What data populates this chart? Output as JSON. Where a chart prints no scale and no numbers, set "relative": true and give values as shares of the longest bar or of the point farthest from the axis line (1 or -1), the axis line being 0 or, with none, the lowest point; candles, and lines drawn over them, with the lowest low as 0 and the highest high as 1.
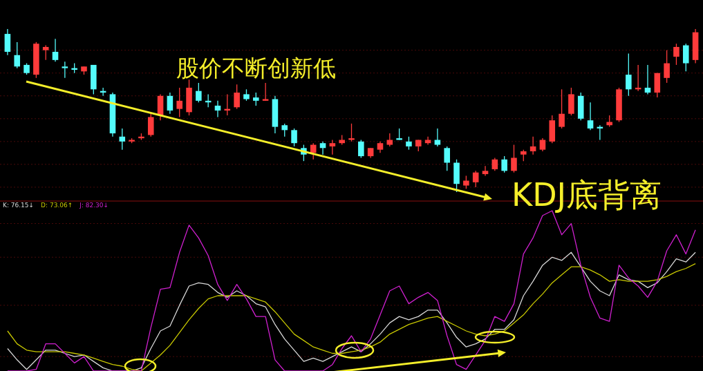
{
  "chart_data": [
    {
      "type": "candlestick",
      "relative": true,
      "ref_lines": [
        {
          "axis": "y",
          "value": 0.87,
          "color": "#4a0a0a",
          "line_style": "dashed"
        },
        {
          "axis": "y",
          "value": 0.73,
          "color": "#4a0a0a",
          "line_style": "dashed"
        },
        {
          "axis": "y",
          "value": 0.59,
          "color": "#4a0a0a",
          "line_style": "dashed"
        },
        {
          "axis": "y",
          "value": 0.45,
          "color": "#4a0a0a",
          "line_style": "dashed"
        },
        {
          "axis": "y",
          "value": 0.31,
          "color": "#4a0a0a",
          "line_style": "dashed"
        },
        {
          "axis": "y",
          "value": 0.17,
          "color": "#4a0a0a",
          "line_style": "dashed"
        },
        {
          "axis": "y",
          "value": 0.03,
          "color": "#4a0a0a",
          "line_style": "dashed"
        }
      ],
      "categories": [
        null,
        null,
        null,
        null,
        null,
        null,
        null,
        null,
        null,
        null,
        null,
        null,
        null,
        null,
        null,
        null,
        null,
        null,
        null,
        null,
        null,
        null,
        null,
        null,
        null,
        null,
        null,
        null,
        null,
        null,
        null,
        null,
        null,
        null,
        null,
        null,
        null,
        null,
        null,
        null,
        null,
        null,
        null,
        null,
        null,
        null,
        null,
        null,
        null,
        null,
        null,
        null,
        null,
        null,
        null,
        null,
        null,
        null,
        null,
        null,
        null,
        null,
        null,
        null,
        null,
        null,
        null,
        null,
        null,
        null,
        null,
        null,
        null
      ],
      "ohlc": [
        [
          0.97,
          1.0,
          0.84,
          0.86
        ],
        [
          0.84,
          0.92,
          0.76,
          0.77
        ],
        [
          0.78,
          0.79,
          0.72,
          0.73
        ],
        [
          0.72,
          0.92,
          0.7,
          0.91
        ],
        [
          0.87,
          0.9,
          0.81,
          0.89
        ],
        [
          0.86,
          0.94,
          0.8,
          0.81
        ],
        [
          0.77,
          0.8,
          0.7,
          0.76
        ],
        [
          0.76,
          0.79,
          0.73,
          0.75
        ],
        [
          0.74,
          0.77,
          0.72,
          0.77
        ],
        [
          0.78,
          0.78,
          0.6,
          0.63
        ],
        [
          0.62,
          0.64,
          0.59,
          0.61
        ],
        [
          0.6,
          0.61,
          0.34,
          0.36
        ],
        [
          0.34,
          0.39,
          0.26,
          0.31
        ],
        [
          0.31,
          0.33,
          0.3,
          0.32
        ],
        [
          0.33,
          0.36,
          0.32,
          0.34
        ],
        [
          0.35,
          0.48,
          0.34,
          0.46
        ],
        [
          0.47,
          0.6,
          0.44,
          0.59
        ],
        [
          0.59,
          0.61,
          0.48,
          0.5
        ],
        [
          0.51,
          0.64,
          0.46,
          0.56
        ],
        [
          0.49,
          0.69,
          0.47,
          0.64
        ],
        [
          0.62,
          0.67,
          0.55,
          0.56
        ],
        [
          0.56,
          0.6,
          0.52,
          0.55
        ],
        [
          0.53,
          0.56,
          0.46,
          0.5
        ],
        [
          0.5,
          0.6,
          0.47,
          0.51
        ],
        [
          0.52,
          0.66,
          0.51,
          0.61
        ],
        [
          0.6,
          0.63,
          0.56,
          0.57
        ],
        [
          0.58,
          0.61,
          0.53,
          0.56
        ],
        [
          0.56,
          0.67,
          0.56,
          0.57
        ],
        [
          0.57,
          0.59,
          0.36,
          0.4
        ],
        [
          0.41,
          0.42,
          0.34,
          0.38
        ],
        [
          0.38,
          0.39,
          0.28,
          0.3
        ],
        [
          0.27,
          0.29,
          0.19,
          0.23
        ],
        [
          0.24,
          0.3,
          0.2,
          0.29
        ],
        [
          0.3,
          0.31,
          0.23,
          0.27
        ],
        [
          0.28,
          0.32,
          0.23,
          0.3
        ],
        [
          0.3,
          0.35,
          0.29,
          0.32
        ],
        [
          0.32,
          0.42,
          0.31,
          0.33
        ],
        [
          0.31,
          0.32,
          0.21,
          0.22
        ],
        [
          0.22,
          0.27,
          0.21,
          0.27
        ],
        [
          0.26,
          0.31,
          0.24,
          0.3
        ],
        [
          0.29,
          0.36,
          0.28,
          0.32
        ],
        [
          0.33,
          0.39,
          0.32,
          0.32
        ],
        [
          0.31,
          0.34,
          0.26,
          0.28
        ],
        [
          0.28,
          0.32,
          0.25,
          0.32
        ],
        [
          0.3,
          0.34,
          0.29,
          0.32
        ],
        [
          0.32,
          0.39,
          0.28,
          0.29
        ],
        [
          0.27,
          0.28,
          0.13,
          0.18
        ],
        [
          0.18,
          0.2,
          0.0,
          0.05
        ],
        [
          0.04,
          0.1,
          0.02,
          0.07
        ],
        [
          0.06,
          0.13,
          0.03,
          0.12
        ],
        [
          0.11,
          0.16,
          0.1,
          0.13
        ],
        [
          0.14,
          0.21,
          0.13,
          0.2
        ],
        [
          0.2,
          0.22,
          0.12,
          0.13
        ],
        [
          0.13,
          0.29,
          0.12,
          0.21
        ],
        [
          0.23,
          0.26,
          0.19,
          0.25
        ],
        [
          0.25,
          0.34,
          0.23,
          0.28
        ],
        [
          0.26,
          0.33,
          0.25,
          0.32
        ],
        [
          0.31,
          0.47,
          0.3,
          0.44
        ],
        [
          0.4,
          0.63,
          0.39,
          0.48
        ],
        [
          0.48,
          0.64,
          0.47,
          0.6
        ],
        [
          0.59,
          0.61,
          0.44,
          0.45
        ],
        [
          0.44,
          0.55,
          0.38,
          0.39
        ],
        [
          0.4,
          0.41,
          0.32,
          0.39
        ],
        [
          0.41,
          0.47,
          0.4,
          0.43
        ],
        [
          0.44,
          0.64,
          0.43,
          0.63
        ],
        [
          0.72,
          0.85,
          0.59,
          0.63
        ],
        [
          0.63,
          0.78,
          0.62,
          0.64
        ],
        [
          0.64,
          0.78,
          0.6,
          0.61
        ],
        [
          0.61,
          0.73,
          0.58,
          0.73
        ],
        [
          0.7,
          0.87,
          0.67,
          0.79
        ],
        [
          0.83,
          0.91,
          0.78,
          0.89
        ],
        [
          0.9,
          0.91,
          0.74,
          0.79
        ],
        [
          0.81,
          1.0,
          0.79,
          0.98
        ]
      ],
      "colors": [
        "#54fcfc",
        "#54fcfc",
        "#54fcfc",
        "#ff3b3b",
        "#ff3b3b",
        "#54fcfc",
        "#54fcfc",
        "#54fcfc",
        "#ff3b3b",
        "#54fcfc",
        "#54fcfc",
        "#54fcfc",
        "#54fcfc",
        "#ff3b3b",
        "#ff3b3b",
        "#ff3b3b",
        "#ff3b3b",
        "#54fcfc",
        "#ff3b3b",
        "#ff3b3b",
        "#54fcfc",
        "#54fcfc",
        "#54fcfc",
        "#ff3b3b",
        "#ff3b3b",
        "#54fcfc",
        "#54fcfc",
        "#ff3b3b",
        "#54fcfc",
        "#54fcfc",
        "#54fcfc",
        "#54fcfc",
        "#ff3b3b",
        "#54fcfc",
        "#ff3b3b",
        "#ff3b3b",
        "#ff3b3b",
        "#54fcfc",
        "#ff3b3b",
        "#ff3b3b",
        "#ff3b3b",
        "#54fcfc",
        "#54fcfc",
        "#ff3b3b",
        "#ff3b3b",
        "#54fcfc",
        "#54fcfc",
        "#54fcfc",
        "#ff3b3b",
        "#ff3b3b",
        "#ff3b3b",
        "#ff3b3b",
        "#54fcfc",
        "#ff3b3b",
        "#ff3b3b",
        "#ff3b3b",
        "#ff3b3b",
        "#ff3b3b",
        "#ff3b3b",
        "#ff3b3b",
        "#54fcfc",
        "#54fcfc",
        "#54fcfc",
        "#ff3b3b",
        "#ff3b3b",
        "#54fcfc",
        "#ff3b3b",
        "#54fcfc",
        "#ff3b3b",
        "#ff3b3b",
        "#ff3b3b",
        "#54fcfc",
        "#ff3b3b"
      ],
      "annotations": [
        "股价不断创新低",
        "KDJ底背离"
      ]
    },
    {
      "type": "line",
      "relative": true,
      "ref_lines": [
        {
          "axis": "y",
          "value": 0.92,
          "color": "#4a0a0a",
          "line_style": "dashed"
        },
        {
          "axis": "y",
          "value": 0.71,
          "color": "#4a0a0a",
          "line_style": "dashed"
        },
        {
          "axis": "y",
          "value": 0.41,
          "color": "#4a0a0a",
          "line_style": "dashed"
        },
        {
          "axis": "y",
          "value": 0.09,
          "color": "#4a0a0a",
          "line_style": "dashed"
        }
      ],
      "categories": [
        null,
        null,
        null,
        null,
        null,
        null,
        null,
        null,
        null,
        null,
        null,
        null,
        null,
        null,
        null,
        null,
        null,
        null,
        null,
        null,
        null,
        null,
        null,
        null,
        null,
        null,
        null,
        null,
        null,
        null,
        null,
        null,
        null,
        null,
        null,
        null,
        null,
        null,
        null,
        null,
        null,
        null,
        null,
        null,
        null,
        null,
        null,
        null,
        null,
        null,
        null,
        null,
        null,
        null,
        null,
        null,
        null,
        null,
        null,
        null,
        null,
        null,
        null,
        null,
        null,
        null,
        null,
        null,
        null,
        null,
        null,
        null,
        null
      ],
      "series": [
        {
          "color": "#d8d8d8",
          "values": [
            0.14,
            0.07,
            0.01,
            0.07,
            0.13,
            0.13,
            0.11,
            0.09,
            0.1,
            0.06,
            0.02,
            0,
            0,
            0,
            0.02,
            0.14,
            0.25,
            0.28,
            0.41,
            0.53,
            0.55,
            0.54,
            0.49,
            0.46,
            0.5,
            0.47,
            0.42,
            0.4,
            0.29,
            0.2,
            0.13,
            0.06,
            0.08,
            0.06,
            0.09,
            0.12,
            0.15,
            0.12,
            0.17,
            0.23,
            0.3,
            0.34,
            0.32,
            0.34,
            0.38,
            0.38,
            0.3,
            0.21,
            0.15,
            0.17,
            0.2,
            0.26,
            0.26,
            0.32,
            0.47,
            0.56,
            0.66,
            0.71,
            0.69,
            0.74,
            0.65,
            0.56,
            0.5,
            0.47,
            0.6,
            0.57,
            0.56,
            0.52,
            0.55,
            0.62,
            0.7,
            0.68,
            0.74
          ]
        },
        {
          "color": "#c8c800",
          "values": [
            0.25,
            0.17,
            0.13,
            0.12,
            0.12,
            0.12,
            0.12,
            0.11,
            0.1,
            0.08,
            0.06,
            0.04,
            0.03,
            0.01,
            0,
            0.05,
            0.1,
            0.16,
            0.24,
            0.32,
            0.39,
            0.45,
            0.47,
            0.47,
            0.47,
            0.47,
            0.45,
            0.43,
            0.37,
            0.3,
            0.23,
            0.19,
            0.15,
            0.13,
            0.11,
            0.11,
            0.12,
            0.13,
            0.15,
            0.18,
            0.23,
            0.26,
            0.29,
            0.31,
            0.33,
            0.34,
            0.31,
            0.28,
            0.25,
            0.23,
            0.22,
            0.23,
            0.25,
            0.3,
            0.35,
            0.42,
            0.48,
            0.55,
            0.6,
            0.65,
            0.65,
            0.63,
            0.6,
            0.56,
            0.57,
            0.56,
            0.56,
            0.56,
            0.57,
            0.59,
            0.62,
            0.64,
            0.67
          ]
        },
        {
          "color": "#d020d0",
          "values": [
            0,
            0,
            0,
            0.01,
            0.17,
            0.17,
            0.11,
            0.05,
            0.09,
            0,
            0,
            0,
            0,
            0,
            0,
            0.27,
            0.51,
            0.52,
            0.74,
            0.91,
            0.83,
            0.72,
            0.54,
            0.44,
            0.54,
            0.45,
            0.34,
            0.34,
            0.07,
            0,
            0,
            0,
            0,
            0,
            0.04,
            0.14,
            0.22,
            0.12,
            0.2,
            0.35,
            0.5,
            0.53,
            0.42,
            0.46,
            0.49,
            0.44,
            0.22,
            0.04,
            0.01,
            0.1,
            0.19,
            0.34,
            0.31,
            0.42,
            0.73,
            0.83,
            0.97,
            1.0,
            0.85,
            0.92,
            0.66,
            0.46,
            0.33,
            0.31,
            0.66,
            0.58,
            0.53,
            0.46,
            0.56,
            0.75,
            0.85,
            0.73,
            0.88
          ]
        }
      ],
      "annotations": [
        "K: 76.15↓",
        "D: 73.06↑",
        "J: 82.30↓"
      ]
    }
  ]
}
